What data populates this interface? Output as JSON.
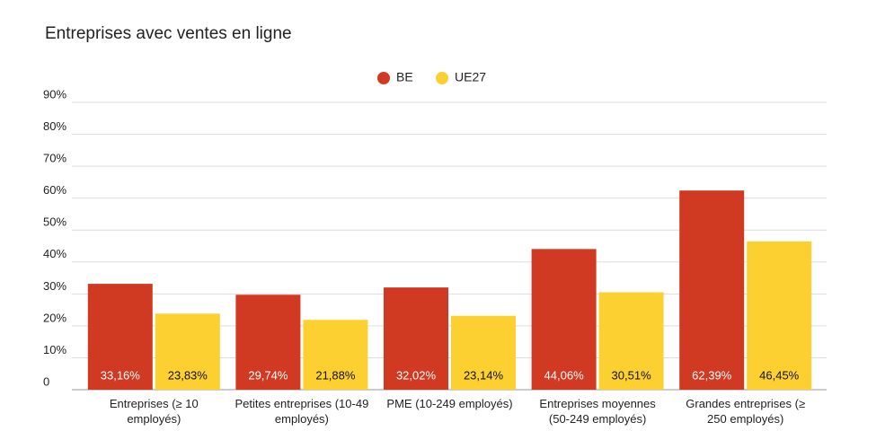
{
  "chart_data": {
    "type": "bar",
    "title": "Entreprises avec ventes en ligne",
    "categories": [
      "Entreprises (≥ 10 employés)",
      "Petites entreprises (10-49 employés)",
      "PME (10-249 employés)",
      "Entreprises moyennes (50-249 employés)",
      "Grandes entreprises (≥ 250 employés)"
    ],
    "series": [
      {
        "name": "BE",
        "color": "#d03a23",
        "values": [
          33.16,
          29.74,
          32.02,
          44.06,
          62.39
        ],
        "value_labels": [
          "33,16%",
          "29,74%",
          "32,02%",
          "44,06%",
          "62,39%"
        ]
      },
      {
        "name": "UE27",
        "color": "#fcd030",
        "values": [
          23.83,
          21.88,
          23.14,
          30.51,
          46.45
        ],
        "value_labels": [
          "23,83%",
          "21,88%",
          "23,14%",
          "30,51%",
          "46,45%"
        ]
      }
    ],
    "ylim": [
      0,
      90
    ],
    "yticks": [
      0,
      {
        "value": 10,
        "label": "10%"
      },
      {
        "value": 20,
        "label": "20%"
      },
      {
        "value": 30,
        "label": "30%"
      },
      {
        "value": 40,
        "label": "40%"
      },
      {
        "value": 50,
        "label": "50%"
      },
      {
        "value": 60,
        "label": "60%"
      },
      {
        "value": 70,
        "label": "70%"
      },
      {
        "value": 80,
        "label": "80%"
      },
      {
        "value": 90,
        "label": "90%"
      }
    ],
    "grid": true,
    "legend": "top"
  }
}
